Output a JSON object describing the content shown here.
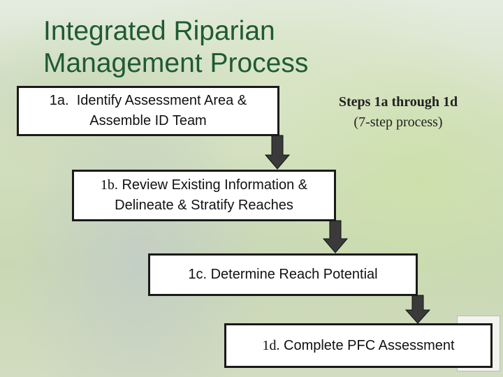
{
  "title_lines": [
    "Integrated Riparian",
    "Management Process"
  ],
  "note": {
    "heading": "Steps 1a through 1d",
    "sub": "(7-step process)"
  },
  "steps": [
    {
      "number": "1a.",
      "text": "Identify Assessment Area & Assemble ID Team"
    },
    {
      "number": "1b.",
      "text": "Review Existing Information & Delineate & Stratify Reaches"
    },
    {
      "number": "1c.",
      "text": "Determine Reach Potential"
    },
    {
      "number": "1d.",
      "text": "Complete PFC Assessment"
    }
  ]
}
